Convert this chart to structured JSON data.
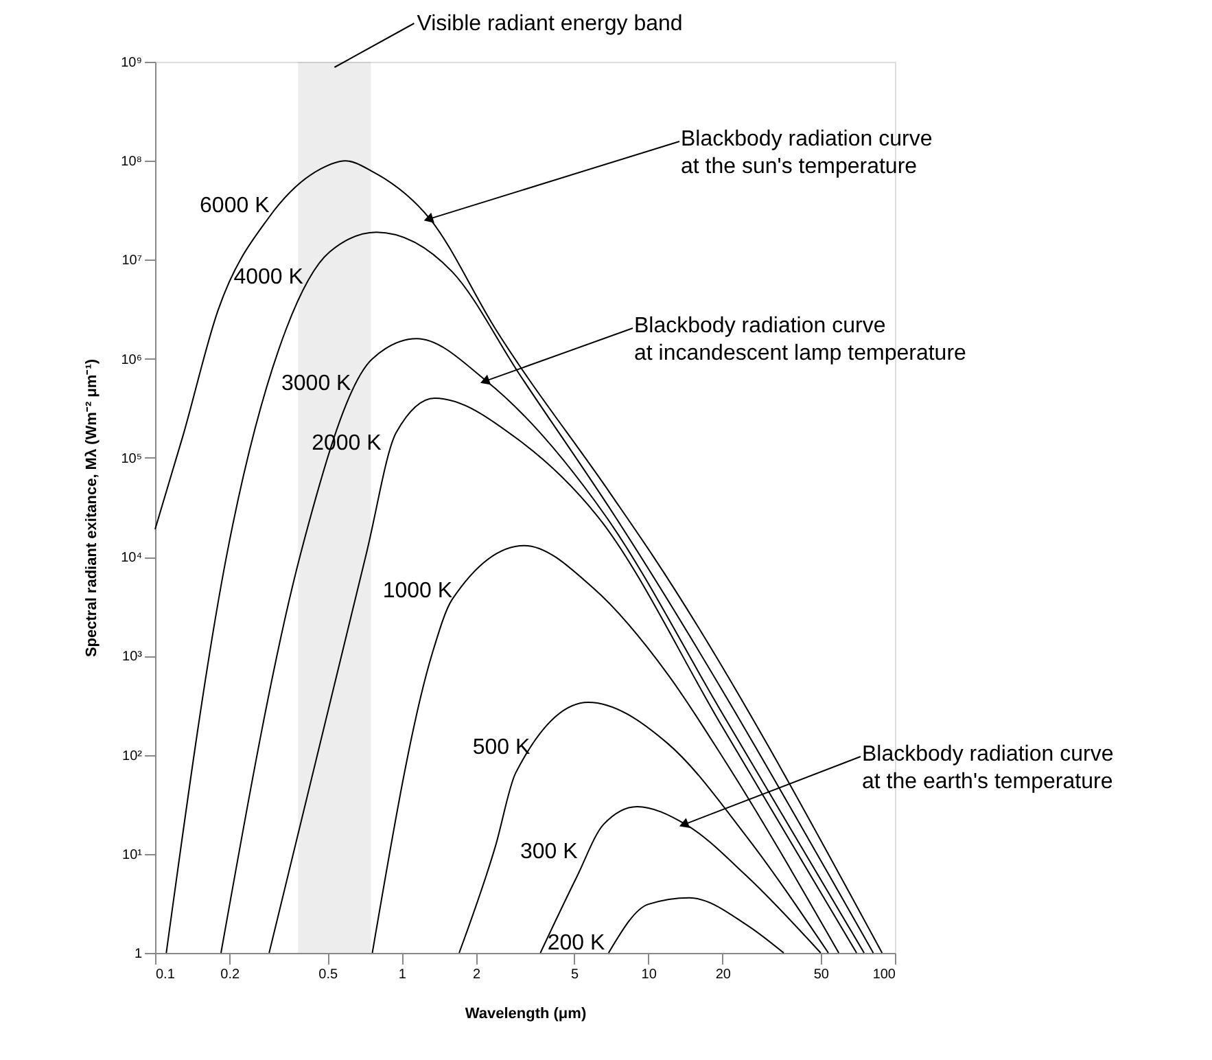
{
  "chart_data": {
    "type": "line",
    "xlabel": "Wavelength (μm)",
    "ylabel": "Spectral radiant exitance, Mλ (Wm⁻² μm⁻¹)",
    "log": "xy",
    "xlim": [
      0.1,
      100
    ],
    "ylim": [
      1,
      1000000000
    ],
    "xticks": [
      0.1,
      0.2,
      0.5,
      1,
      2,
      5,
      10,
      20,
      50,
      100
    ],
    "yticks": [
      1,
      {
        "value": 10,
        "label": "10¹"
      },
      {
        "value": 100,
        "label": "10²"
      },
      {
        "value": 1000,
        "label": "10³"
      },
      {
        "value": 10000,
        "label": "10⁴"
      },
      {
        "value": 100000,
        "label": "10⁵"
      },
      {
        "value": 1000000,
        "label": "10⁶"
      },
      {
        "value": 10000000,
        "label": "10⁷"
      },
      {
        "value": 100000000,
        "label": "10⁸"
      },
      {
        "value": 1000000000,
        "label": "10⁹"
      }
    ],
    "grid": false,
    "series": [
      {
        "name": "6000 K",
        "color": "#000000",
        "x": [
          0.1,
          0.13,
          0.18,
          0.29,
          0.47,
          0.59,
          0.76,
          1.3,
          2.4,
          7,
          10.5,
          88.7
        ],
        "values": [
          19000,
          170000,
          3100000,
          27000000,
          83000000,
          100000000,
          78000000,
          26000000,
          2000000,
          44000,
          10000,
          1
        ]
      },
      {
        "name": "4000 K",
        "color": "#000000",
        "x": [
          0.111,
          0.196,
          0.34,
          0.51,
          0.79,
          1.6,
          3,
          7.3,
          81.7
        ],
        "values": [
          1,
          11000,
          2000000,
          12000000,
          19000000,
          7600000,
          700000,
          26000,
          1
        ]
      },
      {
        "name": "3000 K",
        "color": "#000000",
        "x": [
          0.185,
          0.39,
          0.76,
          1.15,
          2.2,
          6.7,
          20,
          75
        ],
        "values": [
          1,
          11000,
          1000000,
          1600000,
          600000,
          26000,
          260,
          1
        ]
      },
      {
        "name": "2000 K",
        "color": "#000000",
        "x": [
          0.29,
          0.72,
          0.95,
          1.36,
          3,
          6.2,
          20,
          69.9
        ],
        "values": [
          1,
          11000,
          180000,
          400000,
          150000,
          26000,
          190,
          1
        ]
      },
      {
        "name": "1000 K",
        "color": "#000000",
        "x": [
          0.76,
          1.33,
          1.6,
          3.14,
          6,
          12,
          20,
          59.2
        ],
        "values": [
          1,
          1060,
          3700,
          13000,
          4800,
          650,
          95,
          1
        ]
      },
      {
        "name": "500 K",
        "color": "#000000",
        "x": [
          1.71,
          2.4,
          2.9,
          5.7,
          12,
          25,
          53.7
        ],
        "values": [
          1,
          12,
          66,
          340,
          130,
          15,
          1
        ]
      },
      {
        "name": "300 K",
        "color": "#000000",
        "x": [
          3.65,
          5.1,
          6.6,
          9,
          14.1,
          25,
          50
        ],
        "values": [
          1,
          5.7,
          20,
          30,
          20,
          6,
          1
        ]
      },
      {
        "name": "200 K",
        "color": "#000000",
        "x": [
          6.9,
          10,
          14.7,
          25.2,
          35.4
        ],
        "values": [
          1,
          3.1,
          3.6,
          1.9,
          1
        ]
      }
    ],
    "bands": [
      {
        "axis": "x",
        "from": 0.38,
        "to": 0.75,
        "label": "Visible radiant energy band"
      }
    ],
    "annotations": [
      {
        "text": "Blackbody radiation curve\nat the sun's temperature",
        "x": 1.3,
        "y": 26000000
      },
      {
        "text": "Blackbody radiation curve\nat incandescent lamp temperature",
        "x": 2.2,
        "y": 600000
      },
      {
        "text": "Blackbody radiation curve\nat the earth's temperature",
        "x": 14.1,
        "y": 20
      }
    ]
  }
}
